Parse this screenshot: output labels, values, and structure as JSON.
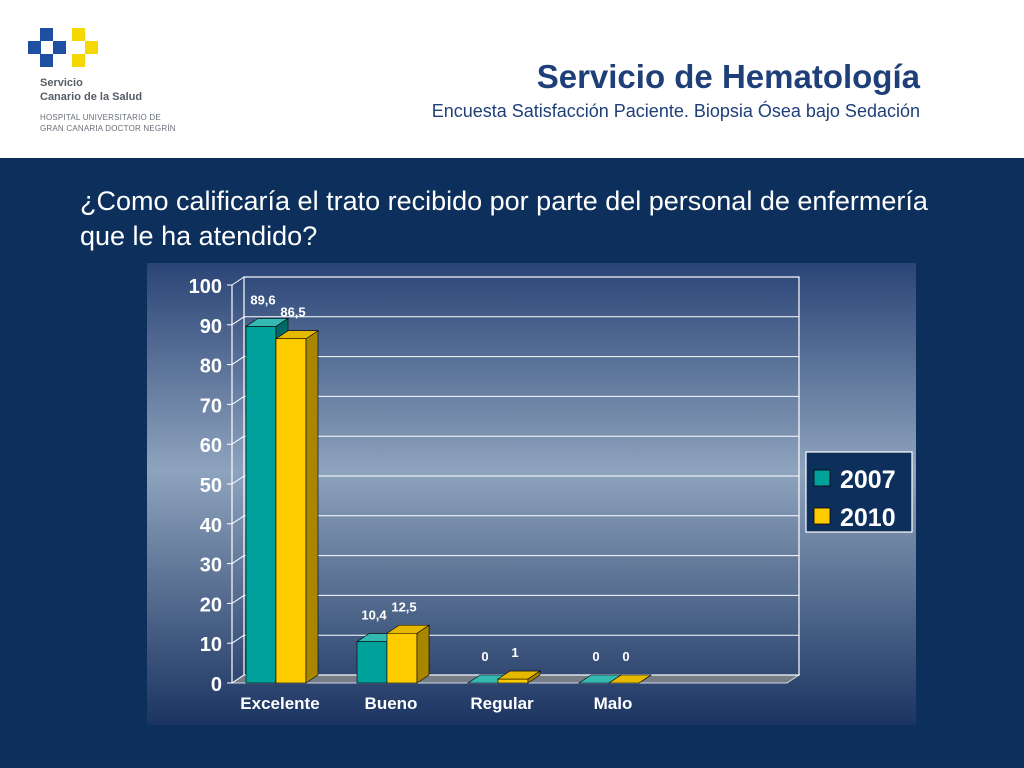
{
  "header": {
    "title": "Servicio de Hematología",
    "subtitle": "Encuesta Satisfacción Paciente. Biopsia Ósea bajo Sedación",
    "logo_line1": "Servicio",
    "logo_line2": "Canario de la Salud",
    "logo_line3": "HOSPITAL UNIVERSITARIO DE",
    "logo_line4": "GRAN CANARIA DOCTOR NEGRÍN"
  },
  "question": "¿Como calificaría el trato recibido por parte del personal de enfermería que le ha atendido?",
  "colors": {
    "series_2007": "#00a19a",
    "series_2010": "#ffcc00",
    "header_blue": "#1f3f79",
    "slide_bg": "#0d2f5c"
  },
  "chart_data": {
    "type": "bar",
    "categories": [
      "Excelente",
      "Bueno",
      "Regular",
      "Malo"
    ],
    "series": [
      {
        "name": "2007",
        "values": [
          89.6,
          10.4,
          0,
          0
        ],
        "labels": [
          "89,6",
          "10,4",
          "0",
          "0"
        ]
      },
      {
        "name": "2010",
        "values": [
          86.5,
          12.5,
          1,
          0
        ],
        "labels": [
          "86,5",
          "12,5",
          "1",
          "0"
        ]
      }
    ],
    "ylim": [
      0,
      100
    ],
    "yticks": [
      "0",
      "10",
      "20",
      "30",
      "40",
      "50",
      "60",
      "70",
      "80",
      "90",
      "100"
    ],
    "grid": true,
    "legend": "right",
    "bar_style": "3d"
  }
}
